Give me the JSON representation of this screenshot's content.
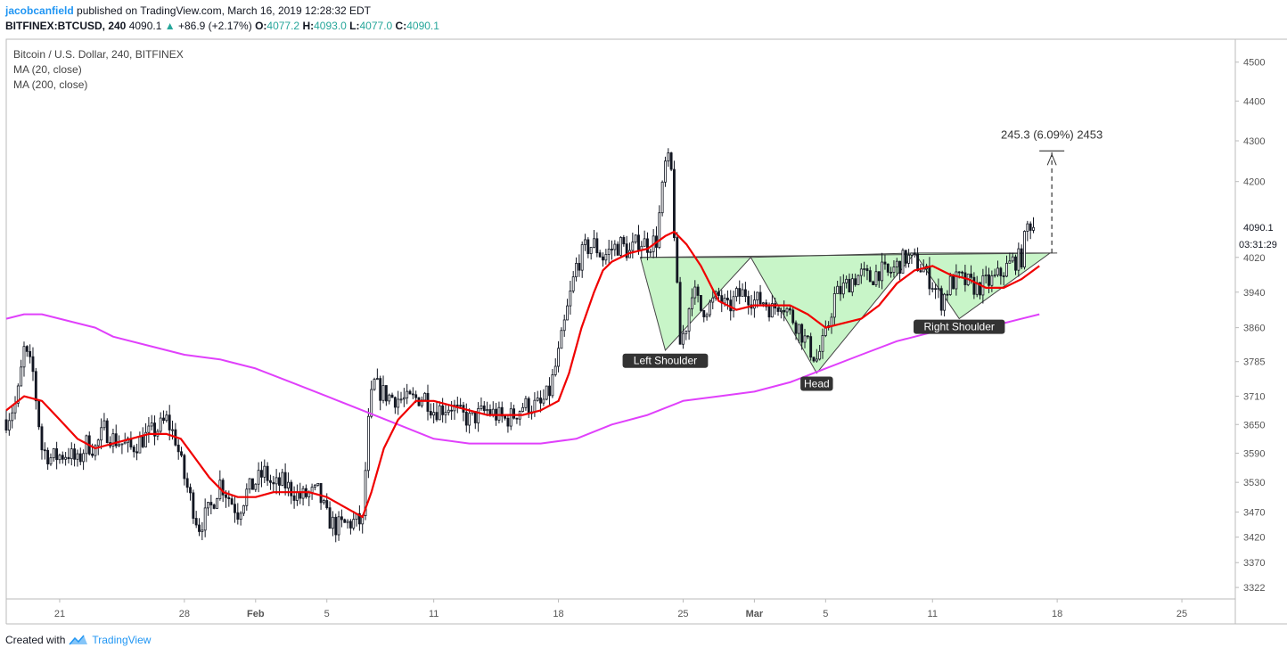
{
  "header": {
    "author": "jacobcanfield",
    "published": "published on TradingView.com, March 16, 2019 12:28:32 EDT",
    "symbol": "BITFINEX:BTCUSD, 240",
    "last": "4090.1",
    "change": "+86.9 (+2.17%)",
    "open_label": "O:",
    "open": "4077.2",
    "high_label": "H:",
    "high": "4093.0",
    "low_label": "L:",
    "low": "4077.0",
    "close_label": "C:",
    "close": "4090.1"
  },
  "legend": {
    "title": "Bitcoin / U.S. Dollar, 240, BITFINEX",
    "ma20": "MA (20, close)",
    "ma200": "MA (200, close)"
  },
  "footer": {
    "created": "Created with",
    "brand": "TradingView"
  },
  "colors": {
    "up_candle": "#ffffff",
    "down_candle": "#131722",
    "wick": "#131722",
    "ma20": "#f00000",
    "ma200": "#e040fb",
    "pattern_fill": "#c8f5c8",
    "pattern_stroke": "#444444",
    "axis_text": "#555555",
    "border": "#bbbbbb",
    "brand": "#2196f3"
  },
  "chart_data": {
    "type": "candlestick",
    "title": "Bitcoin / U.S. Dollar, 240, BITFINEX",
    "y_ticks": [
      4500,
      4400,
      4300,
      4200,
      4020,
      3940,
      3860,
      3785,
      3710,
      3650,
      3590,
      3530,
      3470,
      3420,
      3370,
      3322
    ],
    "y_scale": "log",
    "ylim": [
      3300,
      4560
    ],
    "x_ticks": [
      {
        "day": 21,
        "label": "21"
      },
      {
        "day": 28,
        "label": "28"
      },
      {
        "day": 32,
        "label": "Feb"
      },
      {
        "day": 36,
        "label": "5"
      },
      {
        "day": 42,
        "label": "11"
      },
      {
        "day": 49,
        "label": "18"
      },
      {
        "day": 56,
        "label": "25"
      },
      {
        "day": 60,
        "label": "Mar"
      },
      {
        "day": 64,
        "label": "5"
      },
      {
        "day": 70,
        "label": "11"
      },
      {
        "day": 77,
        "label": "18"
      },
      {
        "day": 84,
        "label": "25"
      }
    ],
    "x_unit": "day (Jan 1 = 1, Feb 1 = 32, Mar 1 = 60)",
    "xlim": [
      18,
      87
    ],
    "last_price_label": "4090.1",
    "countdown_label": "03:31:29",
    "close_path": [
      {
        "day": 18.0,
        "price": 3660
      },
      {
        "day": 18.6,
        "price": 3700
      },
      {
        "day": 19.0,
        "price": 3810
      },
      {
        "day": 19.5,
        "price": 3760
      },
      {
        "day": 20.0,
        "price": 3600
      },
      {
        "day": 20.5,
        "price": 3580
      },
      {
        "day": 21.5,
        "price": 3590
      },
      {
        "day": 22.0,
        "price": 3570
      },
      {
        "day": 22.5,
        "price": 3610
      },
      {
        "day": 23.0,
        "price": 3600
      },
      {
        "day": 23.5,
        "price": 3640
      },
      {
        "day": 24.0,
        "price": 3620
      },
      {
        "day": 25.0,
        "price": 3600
      },
      {
        "day": 26.0,
        "price": 3630
      },
      {
        "day": 26.5,
        "price": 3640
      },
      {
        "day": 27.0,
        "price": 3660
      },
      {
        "day": 27.5,
        "price": 3620
      },
      {
        "day": 28.0,
        "price": 3540
      },
      {
        "day": 28.8,
        "price": 3440
      },
      {
        "day": 29.5,
        "price": 3480
      },
      {
        "day": 30.0,
        "price": 3530
      },
      {
        "day": 31.0,
        "price": 3470
      },
      {
        "day": 31.5,
        "price": 3510
      },
      {
        "day": 32.5,
        "price": 3550
      },
      {
        "day": 33.0,
        "price": 3520
      },
      {
        "day": 33.5,
        "price": 3530
      },
      {
        "day": 34.5,
        "price": 3500
      },
      {
        "day": 35.5,
        "price": 3510
      },
      {
        "day": 36.0,
        "price": 3460
      },
      {
        "day": 36.5,
        "price": 3440
      },
      {
        "day": 37.5,
        "price": 3450
      },
      {
        "day": 38.0,
        "price": 3450
      },
      {
        "day": 38.3,
        "price": 3640
      },
      {
        "day": 38.6,
        "price": 3740
      },
      {
        "day": 39.0,
        "price": 3720
      },
      {
        "day": 39.5,
        "price": 3710
      },
      {
        "day": 40.5,
        "price": 3700
      },
      {
        "day": 41.5,
        "price": 3710
      },
      {
        "day": 42.0,
        "price": 3680
      },
      {
        "day": 43.0,
        "price": 3690
      },
      {
        "day": 43.5,
        "price": 3670
      },
      {
        "day": 44.0,
        "price": 3660
      },
      {
        "day": 45.0,
        "price": 3680
      },
      {
        "day": 46.0,
        "price": 3660
      },
      {
        "day": 46.5,
        "price": 3670
      },
      {
        "day": 47.0,
        "price": 3690
      },
      {
        "day": 48.0,
        "price": 3690
      },
      {
        "day": 48.5,
        "price": 3720
      },
      {
        "day": 49.0,
        "price": 3800
      },
      {
        "day": 49.5,
        "price": 3900
      },
      {
        "day": 50.0,
        "price": 4000
      },
      {
        "day": 50.5,
        "price": 4040
      },
      {
        "day": 51.0,
        "price": 4050
      },
      {
        "day": 51.5,
        "price": 4020
      },
      {
        "day": 52.0,
        "price": 4040
      },
      {
        "day": 52.5,
        "price": 4050
      },
      {
        "day": 53.0,
        "price": 4030
      },
      {
        "day": 53.5,
        "price": 4060
      },
      {
        "day": 54.0,
        "price": 4050
      },
      {
        "day": 54.5,
        "price": 4060
      },
      {
        "day": 55.0,
        "price": 4240
      },
      {
        "day": 55.3,
        "price": 4250
      },
      {
        "day": 55.6,
        "price": 4000
      },
      {
        "day": 55.8,
        "price": 3820
      },
      {
        "day": 56.2,
        "price": 3870
      },
      {
        "day": 56.5,
        "price": 3950
      },
      {
        "day": 57.0,
        "price": 3900
      },
      {
        "day": 57.5,
        "price": 3910
      },
      {
        "day": 58.0,
        "price": 3930
      },
      {
        "day": 58.5,
        "price": 3900
      },
      {
        "day": 59.0,
        "price": 3930
      },
      {
        "day": 59.5,
        "price": 3940
      },
      {
        "day": 60.0,
        "price": 3920
      },
      {
        "day": 60.5,
        "price": 3920
      },
      {
        "day": 61.0,
        "price": 3900
      },
      {
        "day": 61.5,
        "price": 3920
      },
      {
        "day": 62.0,
        "price": 3890
      },
      {
        "day": 62.5,
        "price": 3860
      },
      {
        "day": 63.0,
        "price": 3820
      },
      {
        "day": 63.5,
        "price": 3790
      },
      {
        "day": 64.0,
        "price": 3840
      },
      {
        "day": 64.5,
        "price": 3930
      },
      {
        "day": 65.0,
        "price": 3950
      },
      {
        "day": 65.5,
        "price": 3970
      },
      {
        "day": 66.0,
        "price": 3980
      },
      {
        "day": 66.5,
        "price": 3970
      },
      {
        "day": 67.0,
        "price": 3990
      },
      {
        "day": 67.5,
        "price": 3980
      },
      {
        "day": 68.0,
        "price": 4000
      },
      {
        "day": 68.5,
        "price": 4020
      },
      {
        "day": 69.0,
        "price": 4010
      },
      {
        "day": 69.5,
        "price": 3990
      },
      {
        "day": 70.0,
        "price": 3960
      },
      {
        "day": 70.5,
        "price": 3920
      },
      {
        "day": 71.0,
        "price": 3960
      },
      {
        "day": 71.5,
        "price": 3970
      },
      {
        "day": 72.0,
        "price": 3960
      },
      {
        "day": 72.5,
        "price": 3950
      },
      {
        "day": 73.0,
        "price": 3960
      },
      {
        "day": 73.5,
        "price": 3970
      },
      {
        "day": 74.0,
        "price": 3990
      },
      {
        "day": 74.5,
        "price": 4010
      },
      {
        "day": 75.0,
        "price": 4020
      },
      {
        "day": 75.3,
        "price": 4090
      },
      {
        "day": 75.5,
        "price": 4100
      },
      {
        "day": 75.8,
        "price": 4090
      }
    ],
    "ma20": [
      {
        "day": 18.0,
        "price": 3680
      },
      {
        "day": 19.0,
        "price": 3710
      },
      {
        "day": 20.0,
        "price": 3700
      },
      {
        "day": 21.0,
        "price": 3660
      },
      {
        "day": 22.0,
        "price": 3620
      },
      {
        "day": 23.0,
        "price": 3600
      },
      {
        "day": 24.0,
        "price": 3610
      },
      {
        "day": 25.0,
        "price": 3620
      },
      {
        "day": 26.0,
        "price": 3630
      },
      {
        "day": 27.0,
        "price": 3630
      },
      {
        "day": 27.8,
        "price": 3620
      },
      {
        "day": 28.6,
        "price": 3580
      },
      {
        "day": 29.4,
        "price": 3540
      },
      {
        "day": 30.2,
        "price": 3510
      },
      {
        "day": 31.0,
        "price": 3500
      },
      {
        "day": 32.0,
        "price": 3500
      },
      {
        "day": 33.0,
        "price": 3510
      },
      {
        "day": 34.0,
        "price": 3510
      },
      {
        "day": 35.0,
        "price": 3510
      },
      {
        "day": 36.0,
        "price": 3500
      },
      {
        "day": 37.0,
        "price": 3480
      },
      {
        "day": 38.0,
        "price": 3460
      },
      {
        "day": 38.5,
        "price": 3510
      },
      {
        "day": 39.2,
        "price": 3600
      },
      {
        "day": 40.0,
        "price": 3660
      },
      {
        "day": 41.0,
        "price": 3700
      },
      {
        "day": 42.0,
        "price": 3700
      },
      {
        "day": 43.0,
        "price": 3690
      },
      {
        "day": 44.0,
        "price": 3680
      },
      {
        "day": 45.0,
        "price": 3670
      },
      {
        "day": 46.0,
        "price": 3670
      },
      {
        "day": 47.0,
        "price": 3670
      },
      {
        "day": 48.0,
        "price": 3680
      },
      {
        "day": 49.0,
        "price": 3700
      },
      {
        "day": 49.6,
        "price": 3760
      },
      {
        "day": 50.3,
        "price": 3860
      },
      {
        "day": 51.0,
        "price": 3940
      },
      {
        "day": 51.5,
        "price": 3990
      },
      {
        "day": 52.0,
        "price": 4010
      },
      {
        "day": 53.0,
        "price": 4030
      },
      {
        "day": 54.0,
        "price": 4040
      },
      {
        "day": 55.0,
        "price": 4070
      },
      {
        "day": 55.5,
        "price": 4080
      },
      {
        "day": 56.2,
        "price": 4050
      },
      {
        "day": 57.0,
        "price": 4000
      },
      {
        "day": 57.5,
        "price": 3960
      },
      {
        "day": 58.0,
        "price": 3920
      },
      {
        "day": 59.0,
        "price": 3900
      },
      {
        "day": 60.0,
        "price": 3910
      },
      {
        "day": 61.0,
        "price": 3910
      },
      {
        "day": 62.0,
        "price": 3910
      },
      {
        "day": 63.0,
        "price": 3890
      },
      {
        "day": 64.0,
        "price": 3860
      },
      {
        "day": 65.0,
        "price": 3870
      },
      {
        "day": 66.0,
        "price": 3880
      },
      {
        "day": 67.0,
        "price": 3910
      },
      {
        "day": 68.0,
        "price": 3960
      },
      {
        "day": 69.0,
        "price": 3990
      },
      {
        "day": 70.0,
        "price": 4000
      },
      {
        "day": 71.0,
        "price": 3980
      },
      {
        "day": 72.0,
        "price": 3970
      },
      {
        "day": 73.0,
        "price": 3950
      },
      {
        "day": 74.0,
        "price": 3950
      },
      {
        "day": 75.0,
        "price": 3970
      },
      {
        "day": 76.0,
        "price": 4000
      }
    ],
    "ma200": [
      {
        "day": 18.0,
        "price": 3880
      },
      {
        "day": 19.0,
        "price": 3890
      },
      {
        "day": 20.0,
        "price": 3890
      },
      {
        "day": 21.0,
        "price": 3880
      },
      {
        "day": 22.0,
        "price": 3870
      },
      {
        "day": 23.0,
        "price": 3860
      },
      {
        "day": 24.0,
        "price": 3840
      },
      {
        "day": 26.0,
        "price": 3820
      },
      {
        "day": 28.0,
        "price": 3800
      },
      {
        "day": 30.0,
        "price": 3790
      },
      {
        "day": 32.0,
        "price": 3770
      },
      {
        "day": 34.0,
        "price": 3740
      },
      {
        "day": 36.0,
        "price": 3710
      },
      {
        "day": 38.0,
        "price": 3680
      },
      {
        "day": 40.0,
        "price": 3650
      },
      {
        "day": 42.0,
        "price": 3620
      },
      {
        "day": 44.0,
        "price": 3610
      },
      {
        "day": 46.0,
        "price": 3610
      },
      {
        "day": 48.0,
        "price": 3610
      },
      {
        "day": 50.0,
        "price": 3620
      },
      {
        "day": 52.0,
        "price": 3650
      },
      {
        "day": 54.0,
        "price": 3670
      },
      {
        "day": 56.0,
        "price": 3700
      },
      {
        "day": 58.0,
        "price": 3710
      },
      {
        "day": 60.0,
        "price": 3720
      },
      {
        "day": 62.0,
        "price": 3740
      },
      {
        "day": 64.0,
        "price": 3770
      },
      {
        "day": 66.0,
        "price": 3800
      },
      {
        "day": 68.0,
        "price": 3830
      },
      {
        "day": 70.0,
        "price": 3850
      },
      {
        "day": 72.0,
        "price": 3860
      },
      {
        "day": 74.0,
        "price": 3870
      },
      {
        "day": 76.0,
        "price": 3890
      }
    ],
    "neckline": [
      {
        "day": 53.6,
        "price": 4020
      },
      {
        "day": 77.0,
        "price": 4030
      }
    ],
    "pattern_triangles": [
      {
        "label": "Left Shoulder",
        "points": [
          {
            "day": 53.6,
            "price": 4020
          },
          {
            "day": 55.0,
            "price": 3810
          },
          {
            "day": 59.8,
            "price": 4020
          }
        ]
      },
      {
        "label": "Head",
        "points": [
          {
            "day": 59.8,
            "price": 4020
          },
          {
            "day": 63.5,
            "price": 3760
          },
          {
            "day": 69.0,
            "price": 4030
          }
        ]
      },
      {
        "label": "Right Shoulder",
        "points": [
          {
            "day": 69.0,
            "price": 4030
          },
          {
            "day": 71.5,
            "price": 3880
          },
          {
            "day": 76.6,
            "price": 4030
          }
        ]
      }
    ],
    "annotations": [
      {
        "text": "Left Shoulder",
        "day": 55.0,
        "price": 3785
      },
      {
        "text": "Head",
        "day": 63.5,
        "price": 3735
      },
      {
        "text": "Right Shoulder",
        "day": 71.5,
        "price": 3860
      }
    ],
    "projection": {
      "label": "245.3 (6.09%) 2453",
      "day": 76.7,
      "from_price": 4030,
      "to_price": 4275
    }
  }
}
